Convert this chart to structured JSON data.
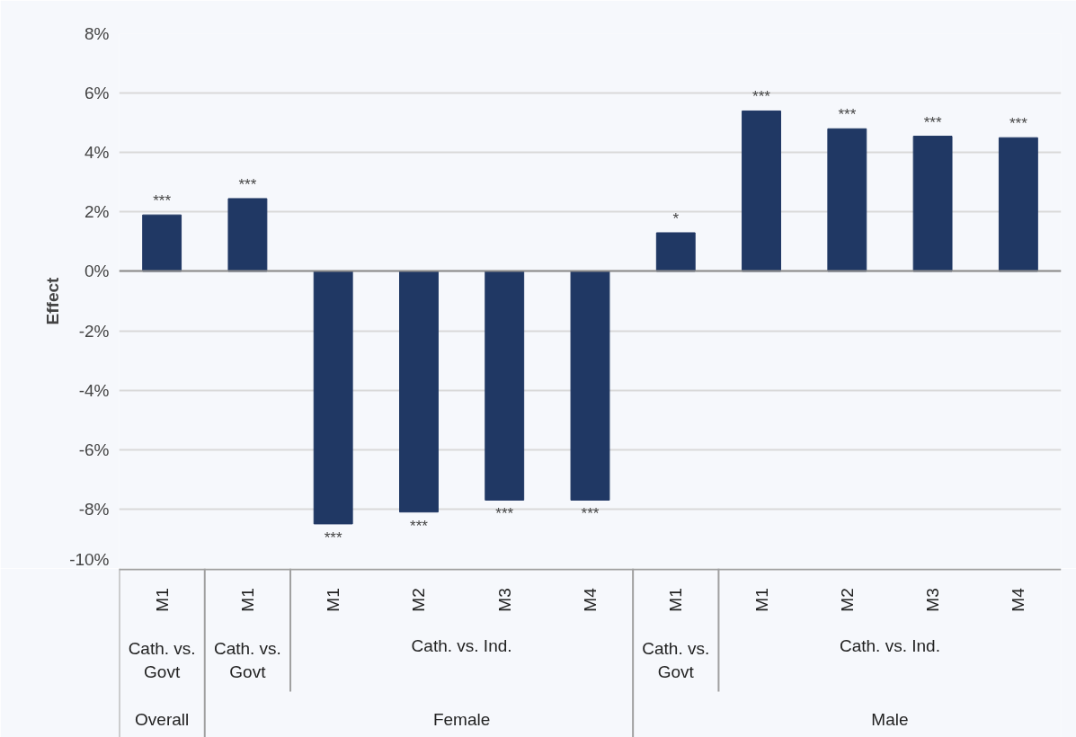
{
  "chart_data": {
    "type": "bar",
    "ylabel": "Effect",
    "categories": [
      "M1",
      "M1",
      "M1",
      "M2",
      "M3",
      "M4",
      "M1",
      "M1",
      "M2",
      "M3",
      "M4"
    ],
    "values": [
      1.9,
      2.45,
      -8.5,
      -8.1,
      -7.7,
      -7.7,
      1.3,
      5.4,
      4.8,
      4.55,
      4.5
    ],
    "value_labels": [
      "***",
      "***",
      "***",
      "***",
      "***",
      "***",
      "*",
      "***",
      "***",
      "***",
      "***"
    ],
    "color": "#203864",
    "ylim": [
      -10,
      8
    ],
    "yticks": [
      {
        "value": -10,
        "label": "-10%"
      },
      {
        "value": -8,
        "label": "-8%"
      },
      {
        "value": -6,
        "label": "-6%"
      },
      {
        "value": -4,
        "label": "-4%"
      },
      {
        "value": -2,
        "label": "-2%"
      },
      {
        "value": 0,
        "label": "0%"
      },
      {
        "value": 2,
        "label": "2%"
      },
      {
        "value": 4,
        "label": "4%"
      },
      {
        "value": 6,
        "label": "6%"
      },
      {
        "value": 8,
        "label": "8%"
      }
    ],
    "grid": "y",
    "annotations": [
      "Cath. vs.\nGovt",
      "Cath. vs.\nGovt",
      "Cath. vs. Ind.",
      "Cath. vs.\nGovt",
      "Cath. vs. Ind.",
      "Overall",
      "Female",
      "Male"
    ]
  }
}
